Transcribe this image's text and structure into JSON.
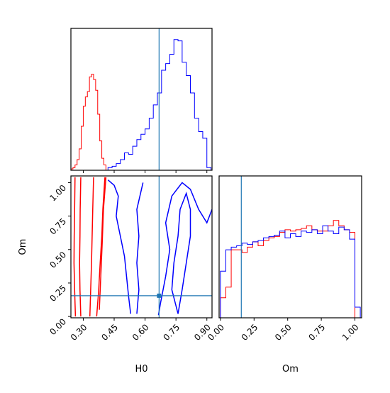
{
  "chart_data": {
    "type": "corner",
    "parameters": [
      "H0",
      "Om"
    ],
    "xlabels": {
      "H0": "H0",
      "Om": "Om"
    },
    "ylabel": "Om",
    "ranges": {
      "H0": [
        0.24,
        0.925
      ],
      "Om": [
        -0.01,
        1.05
      ]
    },
    "ticks": {
      "H0": {
        "values": [
          0.3,
          0.45,
          0.6,
          0.75,
          0.9
        ],
        "labels": [
          "0.30",
          "0.45",
          "0.60",
          "0.75",
          "0.90"
        ]
      },
      "Om": {
        "values": [
          0.0,
          0.25,
          0.5,
          0.75,
          1.0
        ],
        "labels": [
          "0.00",
          "0.25",
          "0.50",
          "0.75",
          "1.00"
        ]
      }
    },
    "truth": {
      "H0": 0.668,
      "Om": 0.155
    },
    "colors": {
      "red_series": "#ff0000",
      "blue_series": "#0000ff",
      "truth": "#1f77b4"
    },
    "histograms": {
      "H0": {
        "red": {
          "x": [
            0.245,
            0.255,
            0.265,
            0.275,
            0.285,
            0.295,
            0.305,
            0.315,
            0.325,
            0.335,
            0.345,
            0.355,
            0.365,
            0.375,
            0.385,
            0.395,
            0.405
          ],
          "y": [
            0.01,
            0.02,
            0.04,
            0.08,
            0.16,
            0.33,
            0.48,
            0.55,
            0.59,
            0.7,
            0.72,
            0.68,
            0.6,
            0.42,
            0.22,
            0.09,
            0.04
          ]
        },
        "blue": {
          "x": [
            0.43,
            0.45,
            0.47,
            0.49,
            0.51,
            0.53,
            0.55,
            0.57,
            0.59,
            0.61,
            0.63,
            0.65,
            0.67,
            0.69,
            0.71,
            0.73,
            0.75,
            0.77,
            0.79,
            0.81,
            0.83,
            0.85,
            0.87,
            0.89,
            0.91
          ],
          "y": [
            0.02,
            0.03,
            0.05,
            0.08,
            0.13,
            0.12,
            0.18,
            0.23,
            0.27,
            0.31,
            0.39,
            0.49,
            0.58,
            0.75,
            0.8,
            0.87,
            0.98,
            0.97,
            0.81,
            0.71,
            0.58,
            0.39,
            0.29,
            0.24,
            0.02
          ]
        }
      },
      "Om": {
        "red": {
          "x": [
            0.02,
            0.06,
            0.1,
            0.14,
            0.18,
            0.22,
            0.26,
            0.3,
            0.34,
            0.38,
            0.42,
            0.46,
            0.5,
            0.54,
            0.58,
            0.62,
            0.66,
            0.7,
            0.74,
            0.78,
            0.82,
            0.86,
            0.9,
            0.94,
            0.98
          ],
          "y": [
            0.15,
            0.23,
            0.51,
            0.51,
            0.49,
            0.53,
            0.57,
            0.54,
            0.58,
            0.6,
            0.61,
            0.64,
            0.66,
            0.65,
            0.66,
            0.67,
            0.69,
            0.66,
            0.65,
            0.65,
            0.69,
            0.73,
            0.69,
            0.66,
            0.64
          ]
        },
        "blue": {
          "x": [
            0.02,
            0.06,
            0.1,
            0.14,
            0.18,
            0.22,
            0.26,
            0.3,
            0.34,
            0.38,
            0.42,
            0.46,
            0.5,
            0.54,
            0.58,
            0.62,
            0.66,
            0.7,
            0.74,
            0.78,
            0.82,
            0.86,
            0.9,
            0.94,
            0.98,
            1.02
          ],
          "y": [
            0.35,
            0.51,
            0.53,
            0.54,
            0.56,
            0.55,
            0.57,
            0.58,
            0.6,
            0.61,
            0.62,
            0.65,
            0.6,
            0.63,
            0.61,
            0.65,
            0.64,
            0.66,
            0.63,
            0.69,
            0.65,
            0.63,
            0.68,
            0.66,
            0.59,
            0.08
          ]
        }
      }
    },
    "contours_2d": {
      "red": [
        [
          [
            0.262,
            0.0
          ],
          [
            0.258,
            0.2
          ],
          [
            0.255,
            0.4
          ],
          [
            0.256,
            0.6
          ],
          [
            0.258,
            0.8
          ],
          [
            0.26,
            1.04
          ]
        ],
        [
          [
            0.288,
            0.0
          ],
          [
            0.284,
            0.2
          ],
          [
            0.282,
            0.4
          ],
          [
            0.284,
            0.6
          ],
          [
            0.285,
            0.8
          ],
          [
            0.288,
            1.04
          ]
        ],
        [
          [
            0.332,
            0.0
          ],
          [
            0.336,
            0.2
          ],
          [
            0.34,
            0.4
          ],
          [
            0.343,
            0.6
          ],
          [
            0.346,
            0.8
          ],
          [
            0.35,
            1.04
          ]
        ],
        [
          [
            0.365,
            0.0
          ],
          [
            0.375,
            0.2
          ],
          [
            0.382,
            0.4
          ],
          [
            0.39,
            0.6
          ],
          [
            0.395,
            0.8
          ],
          [
            0.405,
            1.04
          ]
        ],
        [
          [
            0.378,
            0.05
          ],
          [
            0.385,
            0.3
          ],
          [
            0.392,
            0.55
          ],
          [
            0.398,
            0.8
          ],
          [
            0.41,
            1.04
          ]
        ]
      ],
      "blue": [
        [
          [
            0.42,
            1.02
          ],
          [
            0.45,
            0.98
          ],
          [
            0.47,
            0.9
          ],
          [
            0.46,
            0.75
          ],
          [
            0.48,
            0.6
          ],
          [
            0.5,
            0.45
          ],
          [
            0.51,
            0.3
          ],
          [
            0.52,
            0.15
          ],
          [
            0.53,
            0.02
          ]
        ],
        [
          [
            0.56,
            0.02
          ],
          [
            0.57,
            0.2
          ],
          [
            0.56,
            0.4
          ],
          [
            0.57,
            0.6
          ],
          [
            0.56,
            0.8
          ],
          [
            0.59,
            1.0
          ]
        ],
        [
          [
            0.665,
            0.01
          ],
          [
            0.675,
            0.1
          ],
          [
            0.7,
            0.3
          ],
          [
            0.72,
            0.5
          ],
          [
            0.7,
            0.7
          ],
          [
            0.73,
            0.9
          ],
          [
            0.78,
            1.0
          ],
          [
            0.82,
            0.95
          ],
          [
            0.86,
            0.8
          ],
          [
            0.9,
            0.7
          ],
          [
            0.925,
            0.8
          ]
        ],
        [
          [
            0.76,
            0.02
          ],
          [
            0.78,
            0.2
          ],
          [
            0.8,
            0.4
          ],
          [
            0.82,
            0.6
          ],
          [
            0.82,
            0.8
          ],
          [
            0.8,
            0.92
          ],
          [
            0.77,
            0.8
          ],
          [
            0.76,
            0.6
          ],
          [
            0.74,
            0.4
          ],
          [
            0.73,
            0.2
          ],
          [
            0.76,
            0.02
          ]
        ]
      ]
    }
  }
}
